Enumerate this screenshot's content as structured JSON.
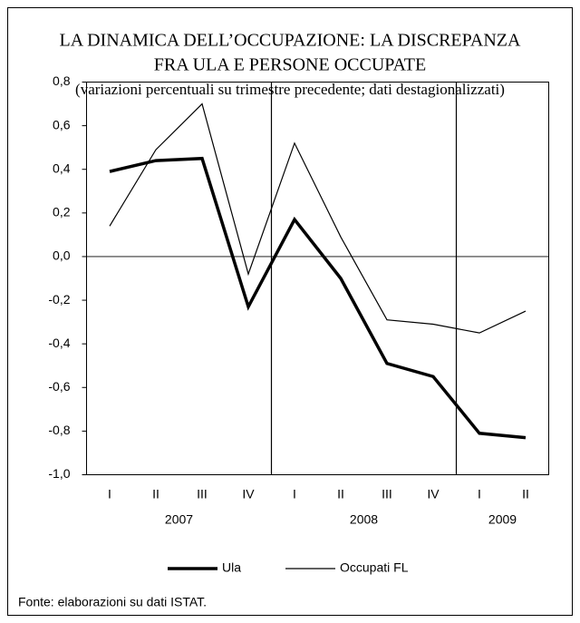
{
  "chart_data": {
    "type": "line",
    "title": [
      "LA DINAMICA DELL’OCCUPAZIONE: LA DISCREPANZA",
      "FRA ULA E PERSONE OCCUPATE"
    ],
    "subtitle": "(variazioni percentuali su trimestre precedente; dati destagionalizzati)",
    "categories": [
      "I",
      "II",
      "III",
      "IV",
      "I",
      "II",
      "III",
      "IV",
      "I",
      "II"
    ],
    "groups": [
      "2007",
      "2008",
      "2009"
    ],
    "series": [
      {
        "name": "Ula",
        "color": "#000000",
        "values": [
          0.39,
          0.44,
          0.45,
          -0.23,
          0.17,
          -0.1,
          -0.49,
          -0.55,
          -0.81,
          -0.83
        ]
      },
      {
        "name": "Occupati FL",
        "color": "#000000",
        "values": [
          0.14,
          0.49,
          0.7,
          -0.08,
          0.52,
          0.09,
          -0.29,
          -0.31,
          -0.35,
          -0.25
        ]
      }
    ],
    "ylim": [
      -1.0,
      0.8
    ],
    "yticks": [
      {
        "value": -1.0,
        "label": "-1,0"
      },
      {
        "value": -0.8,
        "label": "-0,8"
      },
      {
        "value": -0.6,
        "label": "-0,6"
      },
      {
        "value": -0.4,
        "label": "-0,4"
      },
      {
        "value": -0.2,
        "label": "-0,2"
      },
      {
        "value": 0,
        "label": "0,0"
      },
      {
        "value": 0.2,
        "label": "0,2"
      },
      {
        "value": 0.4,
        "label": "0,4"
      },
      {
        "value": 0.6,
        "label": "0,6"
      },
      {
        "value": 0.8,
        "label": "0,8"
      }
    ],
    "source": "Fonte: elaborazioni su dati ISTAT."
  }
}
